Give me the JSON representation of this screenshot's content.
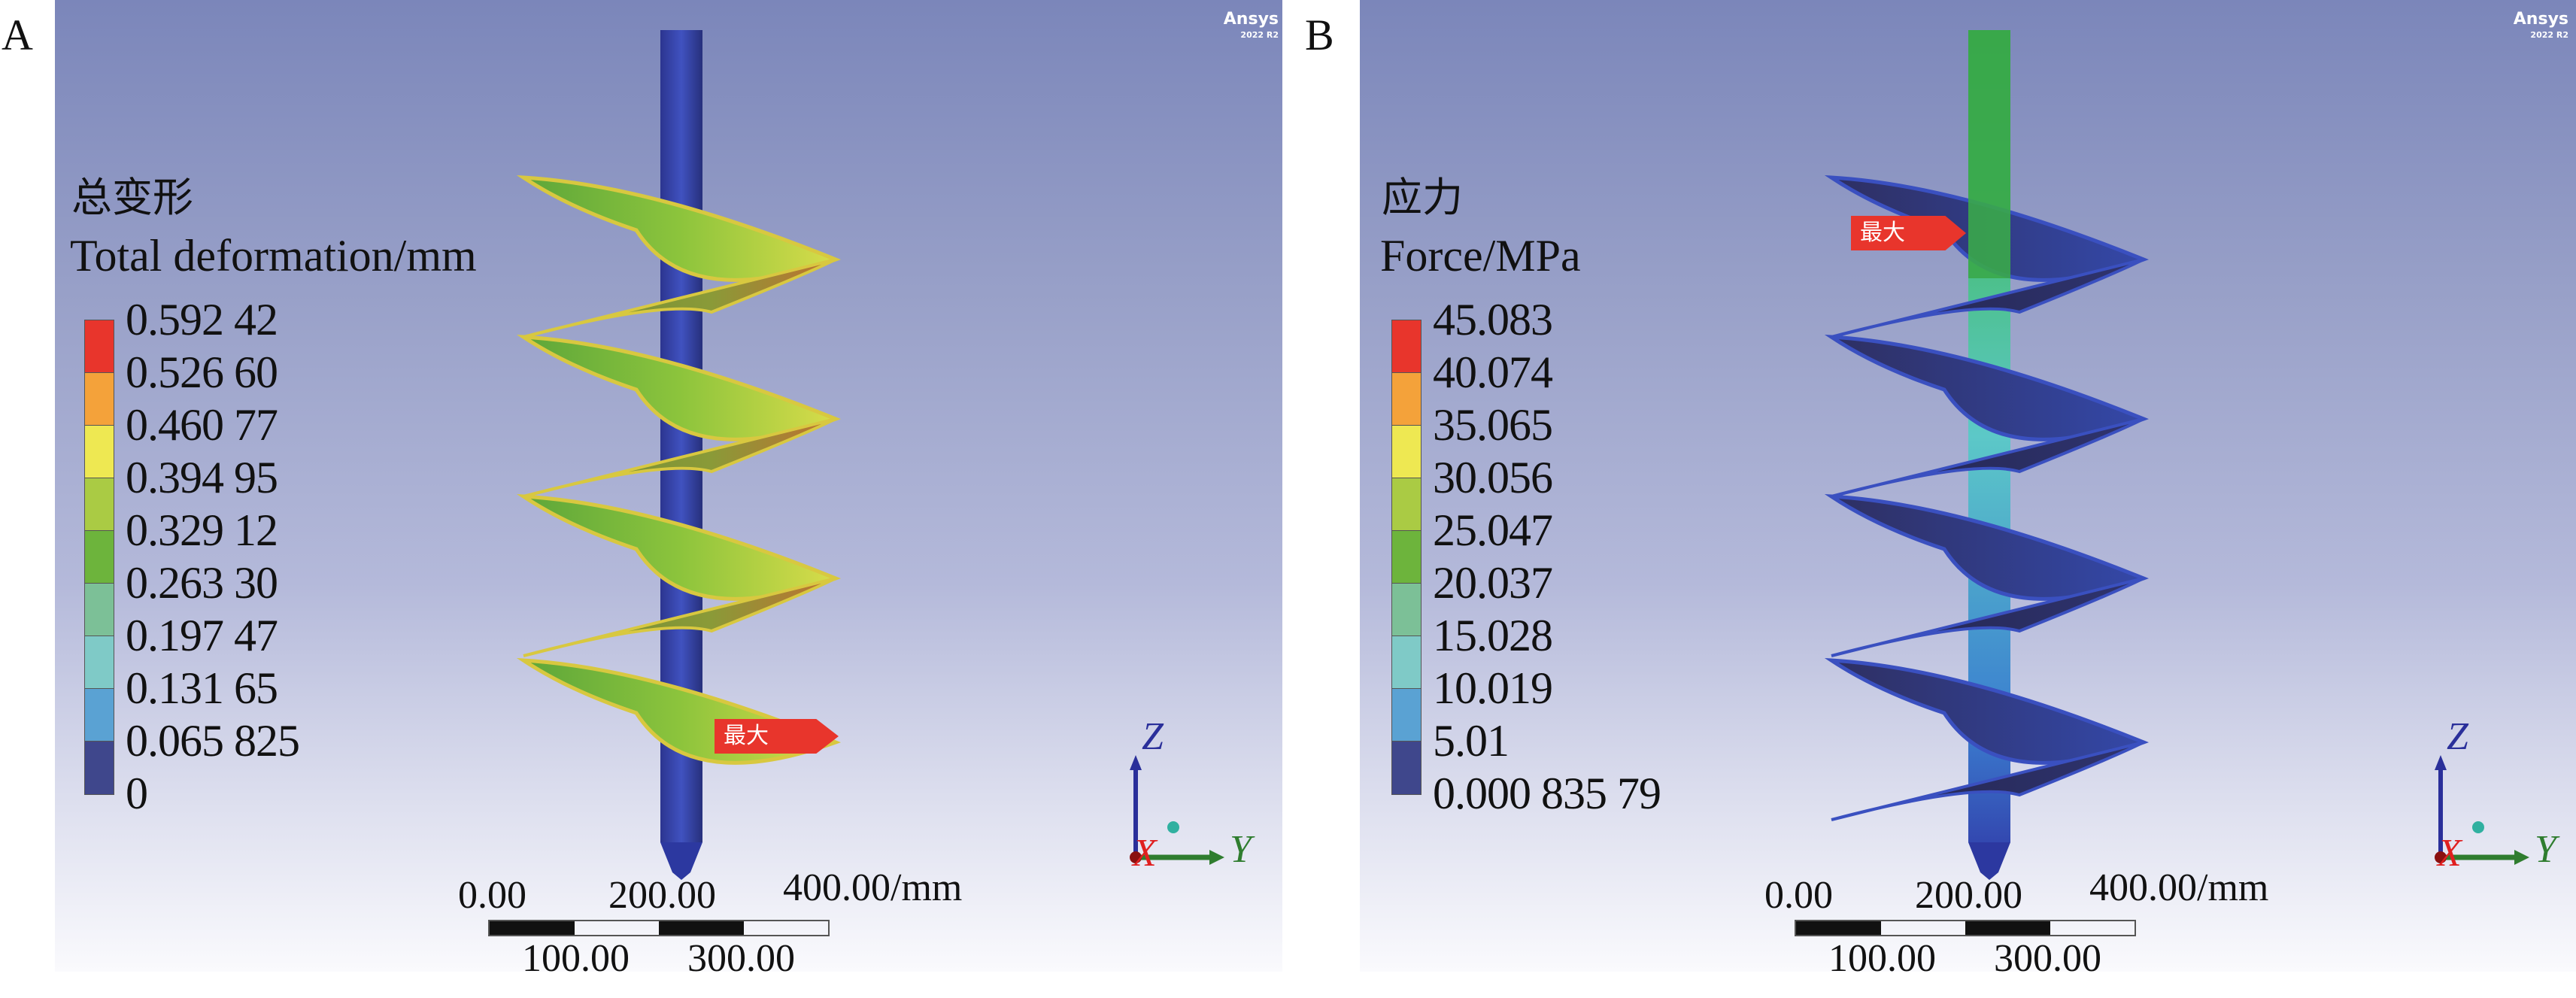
{
  "panels": [
    {
      "label": "A",
      "legend_title_cn": "总变形",
      "legend_title": "Total deformation/mm",
      "legend_ticks": [
        "0.592 42",
        "0.526 60",
        "0.460 77",
        "0.394 95",
        "0.329 12",
        "0.263 30",
        "0.197 47",
        "0.131 65",
        "0.065 825",
        "0"
      ],
      "max_tag": "最大",
      "logo": {
        "name": "Ansys",
        "version": "2022 R2"
      }
    },
    {
      "label": "B",
      "legend_title_cn": "应力",
      "legend_title": "Force/MPa",
      "legend_ticks": [
        "45.083",
        "40.074",
        "35.065",
        "30.056",
        "25.047",
        "20.037",
        "15.028",
        "10.019",
        "5.01",
        "0.000 835 79"
      ],
      "max_tag": "最大",
      "logo": {
        "name": "Ansys",
        "version": "2022 R2"
      }
    }
  ],
  "legend_colors": [
    "#e8352c",
    "#f4a23a",
    "#eee852",
    "#aacb44",
    "#6db43c",
    "#7cc097",
    "#7fcac7",
    "#5aa2d3",
    "#3f478c"
  ],
  "scale_bar": {
    "top_labels": [
      "0.00",
      "200.00",
      "400.00/mm"
    ],
    "bottom_labels": [
      "100.00",
      "300.00"
    ]
  },
  "triad": {
    "z": "Z",
    "x": "X",
    "y": "Y",
    "colors": {
      "z": "#2a2f9a",
      "x": "#e02020",
      "y": "#2f7d2f"
    }
  }
}
